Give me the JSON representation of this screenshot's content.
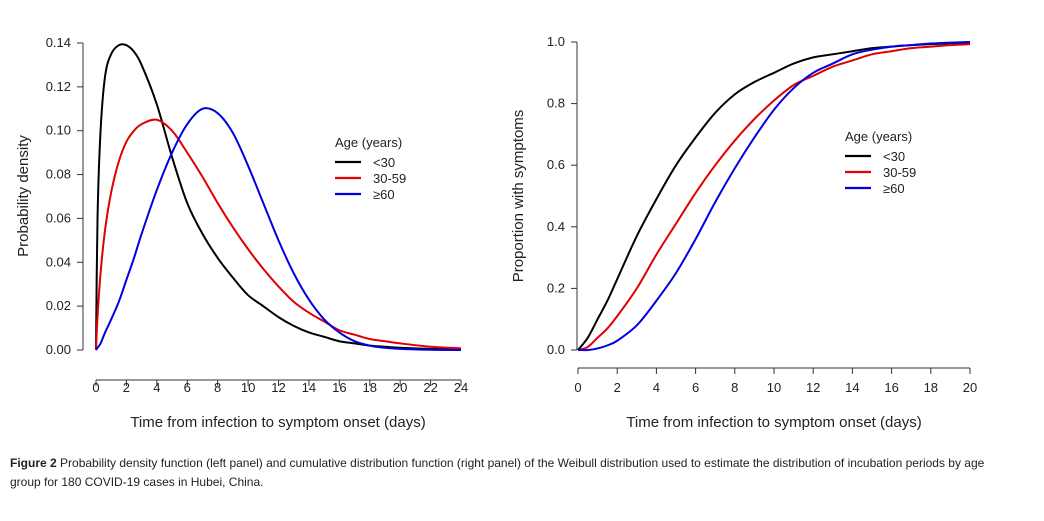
{
  "caption": {
    "label": "Figure 2",
    "text": " Probability density function (left panel) and cumulative distribution function (right panel) of the Weibull distribution used to estimate the distribution of incubation periods by age group for 180 COVID-19 cases in Hubei, China."
  },
  "chart_data": [
    {
      "type": "line",
      "panel": "left",
      "title": "",
      "xlabel": "Time from infection to symptom onset (days)",
      "ylabel": "Probability density",
      "xlim": [
        0,
        24
      ],
      "ylim": [
        0,
        0.14
      ],
      "xticks": [
        "0",
        "2",
        "4",
        "6",
        "8",
        "10",
        "12",
        "14",
        "16",
        "18",
        "20",
        "22",
        "24"
      ],
      "yticks": [
        "0.00",
        "0.02",
        "0.04",
        "0.06",
        "0.08",
        "0.10",
        "0.12",
        "0.14"
      ],
      "xtick_values": [
        0,
        2,
        4,
        6,
        8,
        10,
        12,
        14,
        16,
        18,
        20,
        22,
        24
      ],
      "ytick_values": [
        0,
        0.02,
        0.04,
        0.06,
        0.08,
        0.1,
        0.12,
        0.14
      ],
      "grid": false,
      "legend": {
        "title": "Age (years)",
        "position": "center-right"
      },
      "x": [
        0,
        0.1,
        0.3,
        0.6,
        1,
        1.5,
        2,
        2.5,
        3,
        4,
        5,
        6,
        7,
        8,
        9,
        10,
        11,
        12,
        13,
        14,
        15,
        16,
        17,
        18,
        19,
        20,
        22,
        24
      ],
      "series": [
        {
          "name": "<30",
          "color": "#000000",
          "values": [
            0.0,
            0.06,
            0.1,
            0.125,
            0.135,
            0.139,
            0.139,
            0.136,
            0.13,
            0.112,
            0.088,
            0.067,
            0.053,
            0.042,
            0.033,
            0.025,
            0.02,
            0.015,
            0.011,
            0.008,
            0.006,
            0.004,
            0.003,
            0.002,
            0.0015,
            0.001,
            0.0005,
            0.0002
          ]
        },
        {
          "name": "30-59",
          "color": "#e00000",
          "values": [
            0.0,
            0.015,
            0.035,
            0.055,
            0.072,
            0.086,
            0.095,
            0.1,
            0.103,
            0.105,
            0.1,
            0.09,
            0.079,
            0.067,
            0.056,
            0.046,
            0.037,
            0.029,
            0.022,
            0.017,
            0.013,
            0.009,
            0.007,
            0.005,
            0.004,
            0.003,
            0.0015,
            0.0008
          ]
        },
        {
          "name": "≥60",
          "color": "#0000e0",
          "values": [
            0.0,
            0.001,
            0.003,
            0.008,
            0.014,
            0.022,
            0.032,
            0.042,
            0.053,
            0.073,
            0.09,
            0.103,
            0.11,
            0.108,
            0.099,
            0.084,
            0.067,
            0.05,
            0.035,
            0.023,
            0.014,
            0.008,
            0.004,
            0.002,
            0.001,
            0.0005,
            0.0001,
            0.0
          ]
        }
      ]
    },
    {
      "type": "line",
      "panel": "right",
      "title": "",
      "xlabel": "Time from infection to symptom onset (days)",
      "ylabel": "Proportion with symptoms",
      "xlim": [
        0,
        20
      ],
      "ylim": [
        0,
        1.0
      ],
      "xticks": [
        "0",
        "2",
        "4",
        "6",
        "8",
        "10",
        "12",
        "14",
        "16",
        "18",
        "20"
      ],
      "yticks": [
        "0.0",
        "0.2",
        "0.4",
        "0.6",
        "0.8",
        "1.0"
      ],
      "xtick_values": [
        0,
        2,
        4,
        6,
        8,
        10,
        12,
        14,
        16,
        18,
        20
      ],
      "ytick_values": [
        0,
        0.2,
        0.4,
        0.6,
        0.8,
        1.0
      ],
      "grid": false,
      "legend": {
        "title": "Age (years)",
        "position": "center-right"
      },
      "x": [
        0,
        0.5,
        1,
        1.5,
        2,
        3,
        4,
        5,
        6,
        7,
        8,
        9,
        10,
        11,
        12,
        13,
        14,
        15,
        16,
        17,
        18,
        19,
        20
      ],
      "series": [
        {
          "name": "<30",
          "color": "#000000",
          "values": [
            0.0,
            0.04,
            0.1,
            0.16,
            0.23,
            0.37,
            0.49,
            0.6,
            0.69,
            0.77,
            0.83,
            0.87,
            0.9,
            0.93,
            0.95,
            0.96,
            0.97,
            0.98,
            0.985,
            0.99,
            0.993,
            0.996,
            0.998
          ]
        },
        {
          "name": "30-59",
          "color": "#e00000",
          "values": [
            0.0,
            0.01,
            0.04,
            0.07,
            0.11,
            0.2,
            0.31,
            0.41,
            0.51,
            0.6,
            0.68,
            0.75,
            0.81,
            0.86,
            0.89,
            0.92,
            0.94,
            0.96,
            0.97,
            0.98,
            0.985,
            0.99,
            0.993
          ]
        },
        {
          "name": "≥60",
          "color": "#0000e0",
          "values": [
            0.0,
            0.0,
            0.005,
            0.015,
            0.03,
            0.08,
            0.16,
            0.25,
            0.36,
            0.48,
            0.59,
            0.69,
            0.78,
            0.85,
            0.9,
            0.93,
            0.96,
            0.975,
            0.985,
            0.99,
            0.995,
            0.998,
            1.0
          ]
        }
      ]
    }
  ]
}
